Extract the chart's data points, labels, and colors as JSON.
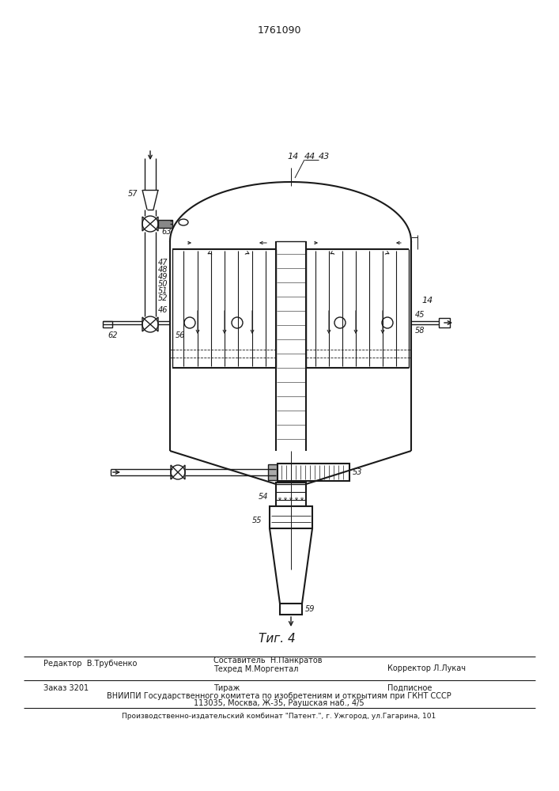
{
  "patent_number": "1761090",
  "fig_label": "Τиг. 4",
  "background_color": "#ffffff",
  "line_color": "#1a1a1a",
  "editor_line": "Редактор  В.Трубченко",
  "techred_line": "Техред М.Моргентал",
  "corrector_line": "Корректор Л.Лукач",
  "order_line": "Заказ 3201",
  "tirazh_line": "Тираж",
  "podpisnoe_line": "Подписное",
  "vniipи_line": "ВНИИПИ Государственного комитета по изобретениям и открытиям при ГКНТ СССР",
  "address_line": "113035, Москва, Ж-35, Раушская наб., 4/5",
  "publisher_line": "Производственно-издательский комбинат \"Патент.\", г. Ужгород, ул.Гагарина, 101",
  "sostavitel_line": "Составитель  Н.Панкратов"
}
